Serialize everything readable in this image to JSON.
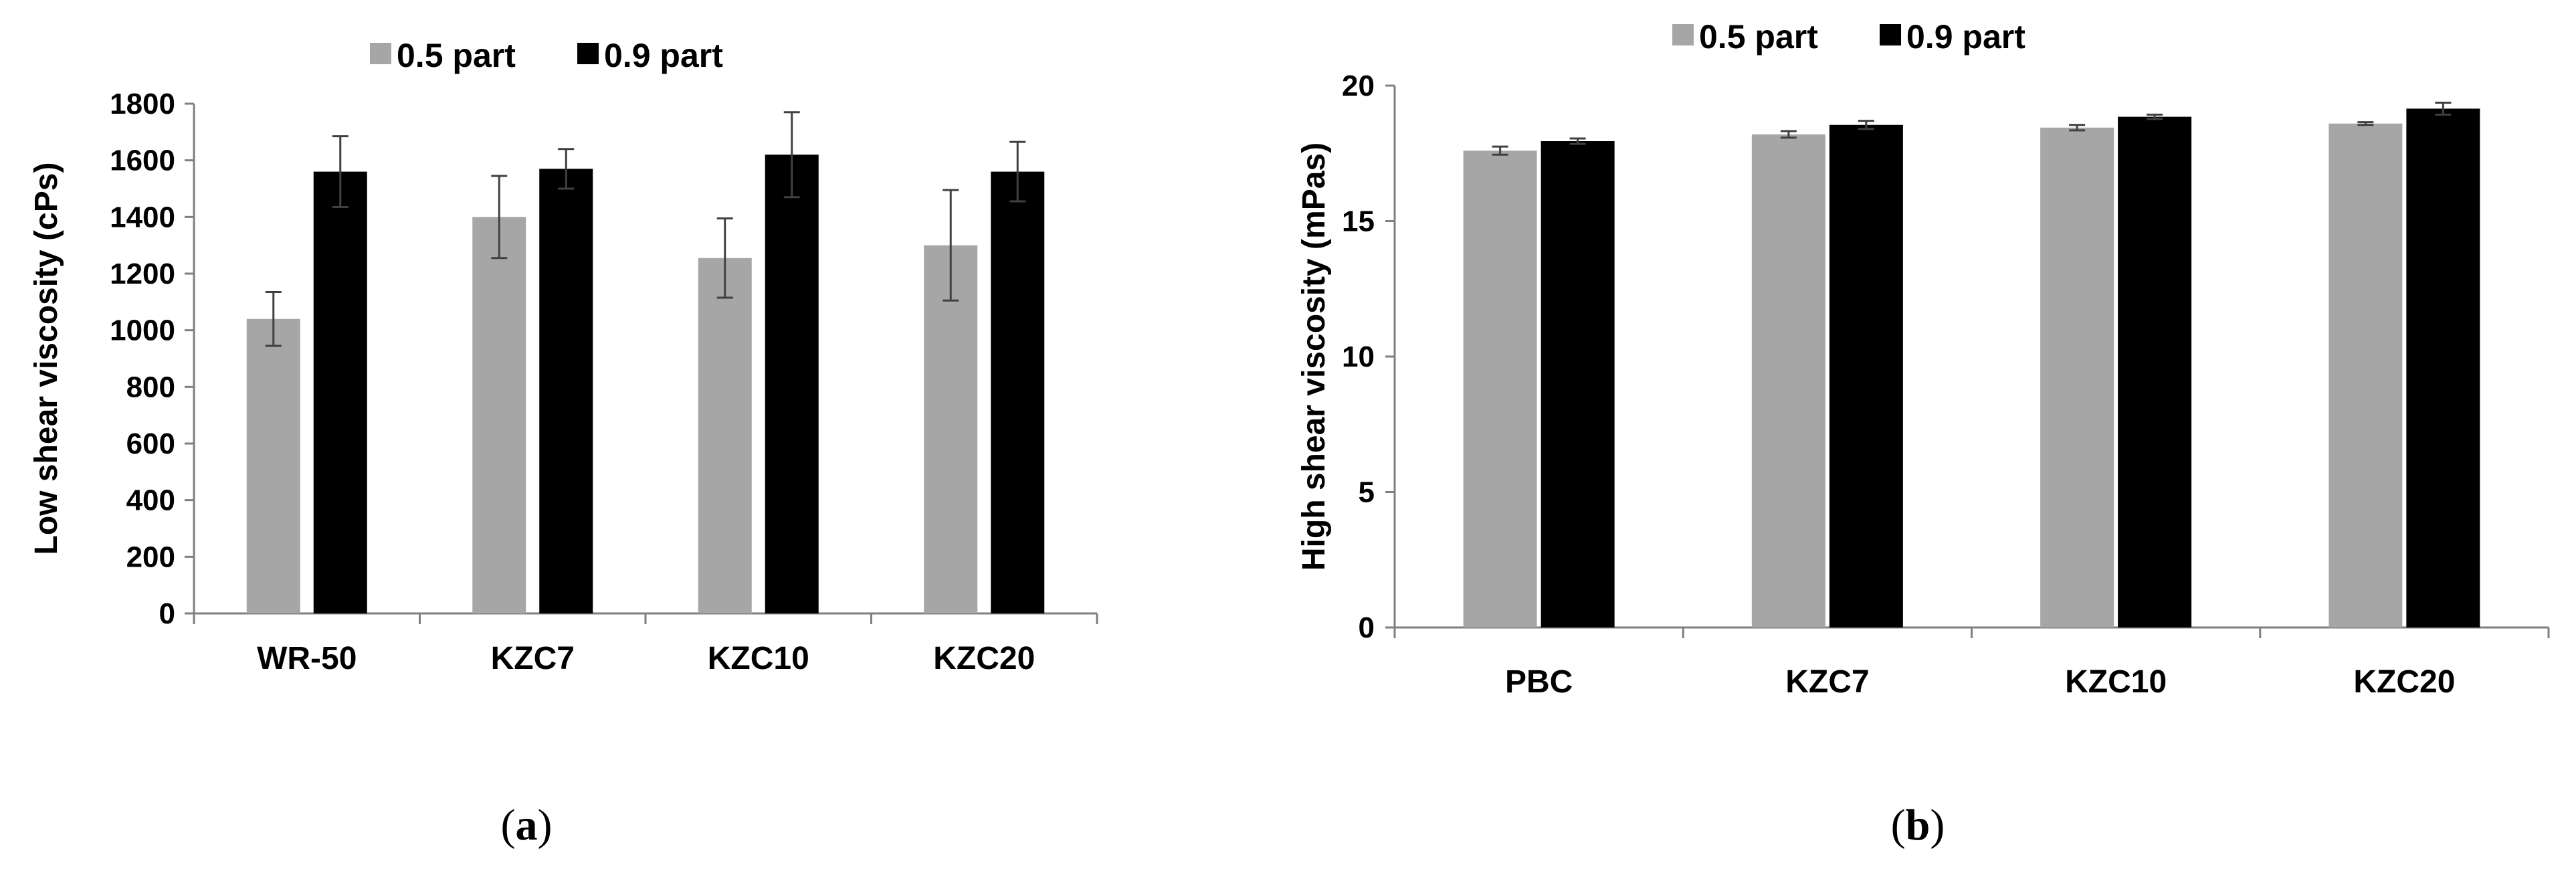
{
  "chart_data": [
    {
      "type": "bar",
      "panel_label": "a",
      "categories": [
        "WR-50",
        "KZC7",
        "KZC10",
        "KZC20"
      ],
      "series": [
        {
          "name": "0.5 part",
          "color": "#a6a6a6",
          "values": [
            1040,
            1400,
            1255,
            1300
          ],
          "errors": [
            95,
            145,
            140,
            195
          ]
        },
        {
          "name": "0.9 part",
          "color": "#000000",
          "values": [
            1560,
            1570,
            1620,
            1560
          ],
          "errors": [
            125,
            70,
            150,
            105
          ]
        }
      ],
      "ylabel": "Low shear viscosity (cPs)",
      "ylim": [
        0,
        1800
      ],
      "yticks": [
        "0",
        "200",
        "400",
        "600",
        "800",
        "1000",
        "1200",
        "1400",
        "1600",
        "1800"
      ],
      "legend_position": "top",
      "grid": false
    },
    {
      "type": "bar",
      "panel_label": "b",
      "categories": [
        "PBC",
        "KZC7",
        "KZC10",
        "KZC20"
      ],
      "series": [
        {
          "name": "0.5 part",
          "color": "#a6a6a6",
          "values": [
            17.6,
            18.2,
            18.45,
            18.6
          ],
          "errors": [
            0.15,
            0.12,
            0.1,
            0.05
          ]
        },
        {
          "name": "0.9 part",
          "color": "#000000",
          "values": [
            17.95,
            18.55,
            18.85,
            19.15
          ],
          "errors": [
            0.1,
            0.15,
            0.08,
            0.22
          ]
        }
      ],
      "ylabel": "High shear viscosity (mPas)",
      "ylim": [
        0,
        20
      ],
      "yticks": [
        "0",
        "5",
        "10",
        "15",
        "20"
      ],
      "legend_position": "top",
      "grid": false
    }
  ]
}
